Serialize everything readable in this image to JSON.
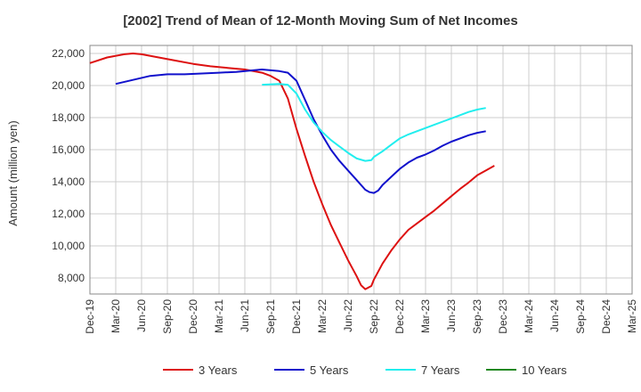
{
  "chart_data": {
    "type": "line",
    "title": "[2002]  Trend of Mean of 12-Month Moving Sum of Net Incomes",
    "ylabel": "Amount (million yen)",
    "xlabel": "",
    "ylim": [
      7000,
      22500
    ],
    "yticks": [
      8000,
      10000,
      12000,
      14000,
      16000,
      18000,
      20000,
      22000
    ],
    "ytick_labels": [
      "8,000",
      "10,000",
      "12,000",
      "14,000",
      "16,000",
      "18,000",
      "20,000",
      "22,000"
    ],
    "xtick_labels": [
      "Dec-19",
      "Mar-20",
      "Jun-20",
      "Sep-20",
      "Dec-20",
      "Mar-21",
      "Jun-21",
      "Sep-21",
      "Dec-21",
      "Mar-22",
      "Jun-22",
      "Sep-22",
      "Dec-22",
      "Mar-23",
      "Jun-23",
      "Sep-23",
      "Dec-23",
      "Mar-24",
      "Jun-24",
      "Sep-24",
      "Dec-24",
      "Mar-25"
    ],
    "grid": true,
    "legend_position": "bottom",
    "series": [
      {
        "name": "3 Years",
        "color": "#dd1111",
        "points": [
          [
            0,
            21400
          ],
          [
            2,
            21750
          ],
          [
            4,
            21950
          ],
          [
            5,
            22000
          ],
          [
            6,
            21950
          ],
          [
            8,
            21750
          ],
          [
            10,
            21550
          ],
          [
            12,
            21350
          ],
          [
            14,
            21200
          ],
          [
            16,
            21100
          ],
          [
            18,
            21000
          ],
          [
            20,
            20800
          ],
          [
            21,
            20600
          ],
          [
            22,
            20300
          ],
          [
            23,
            19200
          ],
          [
            24,
            17300
          ],
          [
            25,
            15600
          ],
          [
            26,
            14000
          ],
          [
            27,
            12600
          ],
          [
            28,
            11300
          ],
          [
            29,
            10200
          ],
          [
            30,
            9100
          ],
          [
            31,
            8100
          ],
          [
            31.5,
            7550
          ],
          [
            32,
            7300
          ],
          [
            32.7,
            7500
          ],
          [
            33,
            7900
          ],
          [
            34,
            8900
          ],
          [
            35,
            9700
          ],
          [
            36,
            10400
          ],
          [
            37,
            11000
          ],
          [
            38,
            11400
          ],
          [
            39,
            11800
          ],
          [
            40,
            12200
          ],
          [
            41,
            12650
          ],
          [
            42,
            13100
          ],
          [
            43,
            13550
          ],
          [
            44,
            13950
          ],
          [
            45,
            14400
          ],
          [
            46,
            14700
          ],
          [
            47,
            15000
          ]
        ]
      },
      {
        "name": "5 Years",
        "color": "#1111cc",
        "points": [
          [
            3,
            20100
          ],
          [
            5,
            20350
          ],
          [
            7,
            20600
          ],
          [
            9,
            20700
          ],
          [
            11,
            20700
          ],
          [
            13,
            20750
          ],
          [
            15,
            20800
          ],
          [
            17,
            20850
          ],
          [
            19,
            20950
          ],
          [
            20,
            21000
          ],
          [
            21,
            20950
          ],
          [
            22,
            20900
          ],
          [
            23,
            20800
          ],
          [
            24,
            20300
          ],
          [
            25,
            19100
          ],
          [
            26,
            17900
          ],
          [
            27,
            16900
          ],
          [
            28,
            16000
          ],
          [
            29,
            15300
          ],
          [
            30,
            14700
          ],
          [
            31,
            14100
          ],
          [
            32,
            13500
          ],
          [
            32.5,
            13350
          ],
          [
            33,
            13300
          ],
          [
            33.5,
            13450
          ],
          [
            34,
            13800
          ],
          [
            35,
            14300
          ],
          [
            36,
            14800
          ],
          [
            37,
            15200
          ],
          [
            38,
            15500
          ],
          [
            39,
            15700
          ],
          [
            40,
            15950
          ],
          [
            41,
            16250
          ],
          [
            42,
            16500
          ],
          [
            43,
            16700
          ],
          [
            44,
            16900
          ],
          [
            45,
            17050
          ],
          [
            46,
            17150
          ]
        ]
      },
      {
        "name": "7 Years",
        "color": "#22eeee",
        "points": [
          [
            20,
            20050
          ],
          [
            22,
            20100
          ],
          [
            23,
            20050
          ],
          [
            24,
            19500
          ],
          [
            25,
            18500
          ],
          [
            26,
            17700
          ],
          [
            27,
            17100
          ],
          [
            28,
            16600
          ],
          [
            29,
            16200
          ],
          [
            30,
            15800
          ],
          [
            31,
            15450
          ],
          [
            32,
            15300
          ],
          [
            32.7,
            15350
          ],
          [
            33,
            15550
          ],
          [
            34,
            15900
          ],
          [
            35,
            16300
          ],
          [
            36,
            16700
          ],
          [
            37,
            16950
          ],
          [
            38,
            17150
          ],
          [
            39,
            17350
          ],
          [
            40,
            17550
          ],
          [
            41,
            17750
          ],
          [
            42,
            17950
          ],
          [
            43,
            18150
          ],
          [
            44,
            18350
          ],
          [
            45,
            18500
          ],
          [
            46,
            18600
          ]
        ]
      },
      {
        "name": "10 Years",
        "color": "#228822",
        "points": []
      }
    ]
  }
}
